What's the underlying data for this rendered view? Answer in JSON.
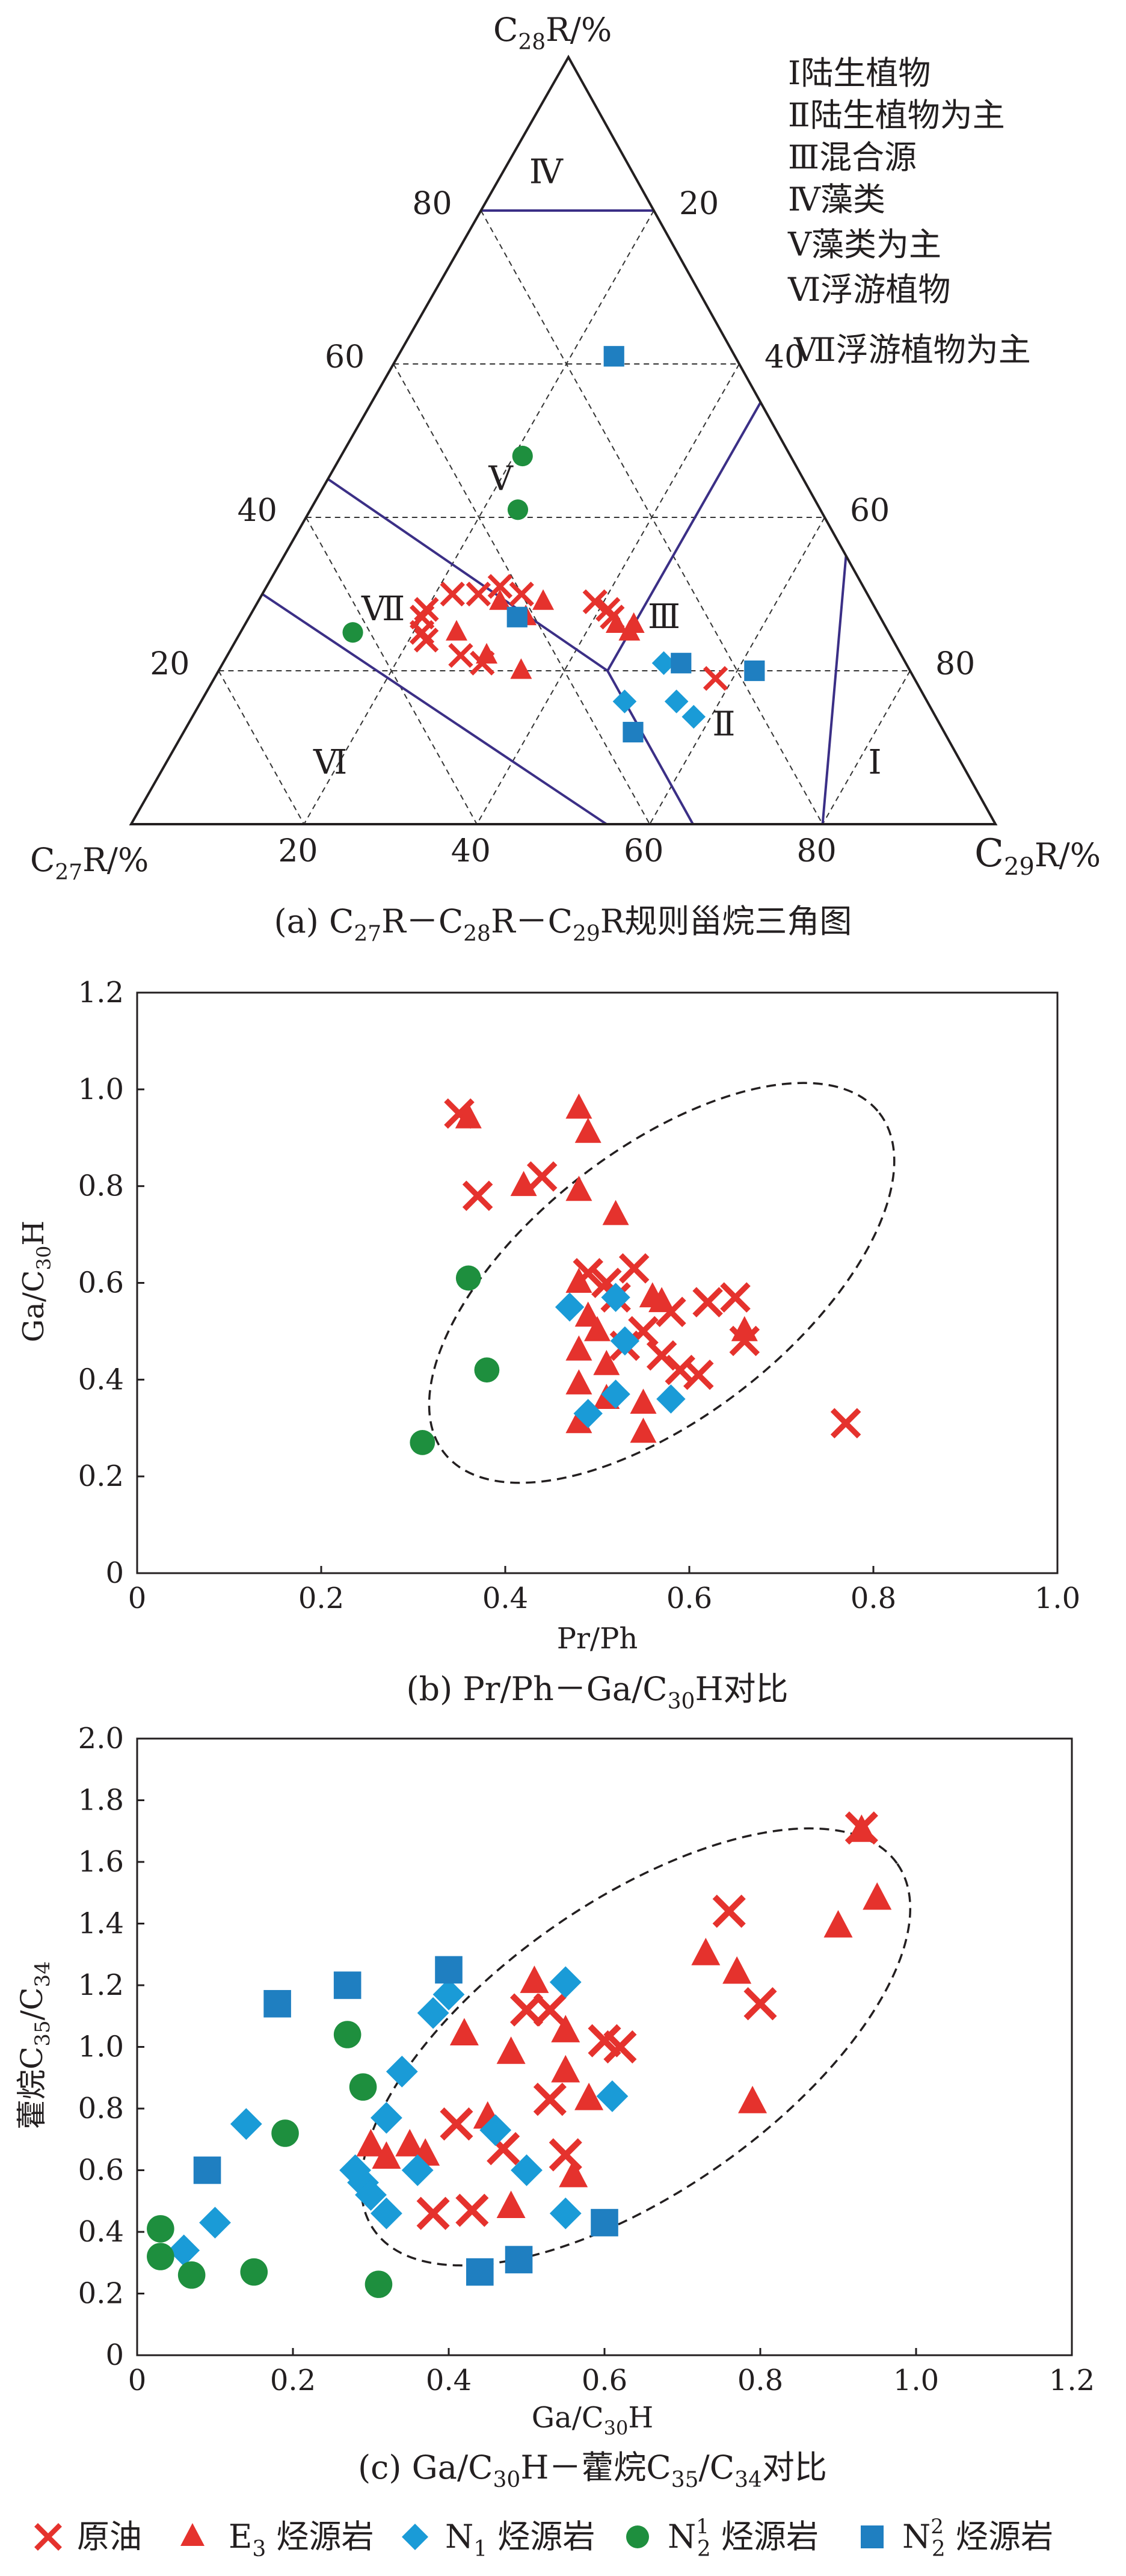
{
  "colors": {
    "crude": "#e5322d",
    "e3": "#e5322d",
    "n1": "#1a9bd7",
    "n21": "#1e8f3e",
    "n22": "#1f7fc1",
    "boundary": "#3b2f86",
    "dash": "#333333",
    "axis": "#231f20"
  },
  "legend": {
    "items": [
      {
        "key": "crude",
        "marker": "x-mark",
        "sym": "原油",
        "sub": "",
        "sup": ""
      },
      {
        "key": "e3",
        "marker": "triangle",
        "sym": "E",
        "sub": "3",
        "sup": "",
        "rest": " 烃源岩"
      },
      {
        "key": "n1",
        "marker": "diamond",
        "sym": "N",
        "sub": "1",
        "sup": "",
        "rest": " 烃源岩"
      },
      {
        "key": "n21",
        "marker": "circle",
        "sym": "N",
        "sub": "2",
        "sup": "1",
        "rest": " 烃源岩"
      },
      {
        "key": "n22",
        "marker": "square",
        "sym": "N",
        "sub": "2",
        "sup": "2",
        "rest": " 烃源岩"
      }
    ]
  },
  "chart_data": [
    {
      "type": "scatter",
      "kind": "ternary",
      "caption": {
        "pre": "(a) C",
        "s1": "27",
        "m1": "R－C",
        "s2": "28",
        "m2": "R－C",
        "s3": "29",
        "post": "R规则甾烷三角图"
      },
      "apex_top": {
        "pre": "C",
        "sub": "28",
        "post": "R/%"
      },
      "apex_left": {
        "pre": "C",
        "sub": "27",
        "post": "R/%"
      },
      "apex_right": {
        "pre": "C",
        "sub": "29",
        "post": "R/%"
      },
      "ticks": [
        "20",
        "40",
        "60",
        "80"
      ],
      "zone_legend": [
        "Ⅰ陆生植物",
        "Ⅱ陆生植物为主",
        "Ⅲ混合源",
        "Ⅳ藻类",
        "Ⅴ藻类为主",
        "Ⅵ浮游植物",
        "Ⅶ浮游植物为主"
      ],
      "zone_labels": [
        {
          "label": "Ⅳ",
          "c27": 10,
          "c28": 85,
          "c29": 5
        },
        {
          "label": "Ⅴ",
          "c27": 35,
          "c28": 45,
          "c29": 20
        },
        {
          "label": "Ⅶ",
          "c27": 57,
          "c28": 28,
          "c29": 15
        },
        {
          "label": "Ⅲ",
          "c27": 25,
          "c28": 27,
          "c29": 48
        },
        {
          "label": "Ⅱ",
          "c27": 25,
          "c28": 13,
          "c29": 62
        },
        {
          "label": "Ⅵ",
          "c27": 73,
          "c28": 8,
          "c29": 19
        },
        {
          "label": "Ⅰ",
          "c27": 10,
          "c28": 8,
          "c29": 82
        }
      ],
      "series": [
        {
          "key": "crude",
          "points": [
            [
              48,
              30,
              22
            ],
            [
              53,
              27,
              20
            ],
            [
              54,
              24,
              22
            ],
            [
              54,
              25,
              21
            ],
            [
              51,
              22,
              27
            ],
            [
              45,
              30,
              25
            ],
            [
              42,
              31,
              27
            ],
            [
              40,
              30,
              30
            ],
            [
              32,
              29,
              39
            ],
            [
              31,
              28,
              41
            ],
            [
              31,
              27,
              42
            ],
            [
              23,
              19,
              58
            ],
            [
              52,
              28,
              20
            ],
            [
              49,
              21,
              30
            ]
          ]
        },
        {
          "key": "e3",
          "points": [
            [
              50,
              25,
              25
            ],
            [
              48,
              22,
              30
            ],
            [
              45,
              20,
              35
            ],
            [
              43,
              29,
              28
            ],
            [
              31,
              26,
              43
            ],
            [
              30,
              25,
              45
            ],
            [
              29,
              26,
              45
            ],
            [
              38,
              29,
              33
            ],
            [
              41,
              27,
              32
            ]
          ]
        },
        {
          "key": "n1",
          "points": [
            [
              35,
              16,
              49
            ],
            [
              29,
              16,
              55
            ],
            [
              28,
              14,
              58
            ],
            [
              28,
              21,
              51
            ]
          ]
        },
        {
          "key": "n21",
          "points": [
            [
              31,
              48,
              21
            ],
            [
              35,
              41,
              24
            ],
            [
              62,
              25,
              13
            ]
          ]
        },
        {
          "key": "n22",
          "points": [
            [
              14,
              61,
              25
            ],
            [
              42,
              27,
              31
            ],
            [
              26,
              21,
              53
            ],
            [
              18,
              20,
              62
            ],
            [
              36,
              12,
              52
            ]
          ]
        }
      ]
    },
    {
      "type": "scatter",
      "caption": {
        "pre": "(b) Pr/Ph－Ga/C",
        "sub": "30",
        "post": "H对比"
      },
      "xlabel": "Pr/Ph",
      "ylabel": {
        "pre": "Ga/C",
        "sub": "30",
        "post": "H"
      },
      "xlim": [
        0,
        1.0
      ],
      "ylim": [
        0,
        1.2
      ],
      "xticks": [
        "0",
        "0.2",
        "0.4",
        "0.6",
        "0.8",
        "1.0"
      ],
      "yticks": [
        "0",
        "0.2",
        "0.4",
        "0.6",
        "0.8",
        "1.0",
        "1.2"
      ],
      "ellipse": {
        "cx": 0.57,
        "cy": 0.6,
        "rx": 0.3,
        "ry": 0.12,
        "angle": -38
      },
      "series": [
        {
          "key": "crude",
          "points": [
            [
              0.35,
              0.95
            ],
            [
              0.37,
              0.78
            ],
            [
              0.44,
              0.82
            ],
            [
              0.49,
              0.62
            ],
            [
              0.51,
              0.6
            ],
            [
              0.54,
              0.63
            ],
            [
              0.55,
              0.5
            ],
            [
              0.58,
              0.54
            ],
            [
              0.62,
              0.56
            ],
            [
              0.65,
              0.57
            ],
            [
              0.57,
              0.45
            ],
            [
              0.59,
              0.42
            ],
            [
              0.61,
              0.41
            ],
            [
              0.66,
              0.48
            ],
            [
              0.52,
              0.57
            ],
            [
              0.53,
              0.47
            ],
            [
              0.77,
              0.31
            ]
          ]
        },
        {
          "key": "e3",
          "points": [
            [
              0.36,
              0.94
            ],
            [
              0.42,
              0.8
            ],
            [
              0.48,
              0.96
            ],
            [
              0.49,
              0.91
            ],
            [
              0.48,
              0.79
            ],
            [
              0.52,
              0.74
            ],
            [
              0.48,
              0.6
            ],
            [
              0.49,
              0.53
            ],
            [
              0.48,
              0.46
            ],
            [
              0.5,
              0.5
            ],
            [
              0.51,
              0.43
            ],
            [
              0.48,
              0.39
            ],
            [
              0.48,
              0.31
            ],
            [
              0.51,
              0.36
            ],
            [
              0.55,
              0.35
            ],
            [
              0.55,
              0.29
            ],
            [
              0.56,
              0.57
            ],
            [
              0.57,
              0.56
            ],
            [
              0.66,
              0.5
            ]
          ]
        },
        {
          "key": "n1",
          "points": [
            [
              0.47,
              0.55
            ],
            [
              0.52,
              0.57
            ],
            [
              0.53,
              0.48
            ],
            [
              0.49,
              0.33
            ],
            [
              0.52,
              0.37
            ],
            [
              0.58,
              0.36
            ]
          ]
        },
        {
          "key": "n21",
          "points": [
            [
              0.36,
              0.61
            ],
            [
              0.38,
              0.42
            ],
            [
              0.31,
              0.27
            ]
          ]
        }
      ]
    },
    {
      "type": "scatter",
      "caption": {
        "pre": "(c) Ga/C",
        "s1": "30",
        "mid": "H－藿烷C",
        "s2": "35",
        "slash": "/C",
        "s3": "34",
        "post": "对比"
      },
      "xlabel": {
        "pre": "Ga/C",
        "sub": "30",
        "post": "H"
      },
      "ylabel": {
        "pre": "藿烷C",
        "s1": "35",
        "slash": "/C",
        "s2": "34"
      },
      "xlim": [
        0,
        1.2
      ],
      "ylim": [
        0,
        2.0
      ],
      "xticks": [
        "0",
        "0.2",
        "0.4",
        "0.6",
        "0.8",
        "1.0",
        "1.2"
      ],
      "yticks": [
        "0",
        "0.2",
        "0.4",
        "0.6",
        "0.8",
        "1.0",
        "1.2",
        "1.4",
        "1.6",
        "1.8",
        "2.0"
      ],
      "ellipse": {
        "cx": 0.64,
        "cy": 1.0,
        "rx": 0.41,
        "ry": 0.205,
        "angle": -35
      },
      "series": [
        {
          "key": "crude",
          "points": [
            [
              0.38,
              0.46
            ],
            [
              0.43,
              0.47
            ],
            [
              0.41,
              0.75
            ],
            [
              0.47,
              0.67
            ],
            [
              0.5,
              1.12
            ],
            [
              0.53,
              1.12
            ],
            [
              0.53,
              0.83
            ],
            [
              0.55,
              0.65
            ],
            [
              0.6,
              1.02
            ],
            [
              0.62,
              1.0
            ],
            [
              0.76,
              1.44
            ],
            [
              0.8,
              1.14
            ],
            [
              0.93,
              1.71
            ]
          ]
        },
        {
          "key": "e3",
          "points": [
            [
              0.3,
              0.68
            ],
            [
              0.32,
              0.64
            ],
            [
              0.35,
              0.68
            ],
            [
              0.37,
              0.65
            ],
            [
              0.42,
              1.04
            ],
            [
              0.45,
              0.77
            ],
            [
              0.48,
              0.48
            ],
            [
              0.48,
              0.98
            ],
            [
              0.51,
              1.21
            ],
            [
              0.55,
              1.05
            ],
            [
              0.55,
              0.92
            ],
            [
              0.56,
              0.58
            ],
            [
              0.58,
              0.83
            ],
            [
              0.73,
              1.3
            ],
            [
              0.77,
              1.24
            ],
            [
              0.79,
              0.82
            ],
            [
              0.9,
              1.39
            ],
            [
              0.93,
              1.7
            ],
            [
              0.95,
              1.48
            ]
          ]
        },
        {
          "key": "n1",
          "points": [
            [
              0.06,
              0.34
            ],
            [
              0.1,
              0.43
            ],
            [
              0.14,
              0.75
            ],
            [
              0.28,
              0.6
            ],
            [
              0.29,
              0.56
            ],
            [
              0.3,
              0.52
            ],
            [
              0.32,
              0.46
            ],
            [
              0.32,
              0.77
            ],
            [
              0.34,
              0.92
            ],
            [
              0.36,
              0.6
            ],
            [
              0.38,
              1.11
            ],
            [
              0.4,
              1.17
            ],
            [
              0.46,
              0.73
            ],
            [
              0.5,
              0.6
            ],
            [
              0.55,
              1.21
            ],
            [
              0.55,
              0.46
            ],
            [
              0.61,
              0.84
            ]
          ]
        },
        {
          "key": "n21",
          "points": [
            [
              0.03,
              0.41
            ],
            [
              0.03,
              0.32
            ],
            [
              0.07,
              0.26
            ],
            [
              0.15,
              0.27
            ],
            [
              0.19,
              0.72
            ],
            [
              0.29,
              0.87
            ],
            [
              0.27,
              1.04
            ],
            [
              0.31,
              0.23
            ]
          ]
        },
        {
          "key": "n22",
          "points": [
            [
              0.09,
              0.6
            ],
            [
              0.18,
              1.14
            ],
            [
              0.27,
              1.2
            ],
            [
              0.4,
              1.25
            ],
            [
              0.44,
              0.27
            ],
            [
              0.49,
              0.31
            ],
            [
              0.6,
              0.43
            ]
          ]
        }
      ]
    }
  ]
}
